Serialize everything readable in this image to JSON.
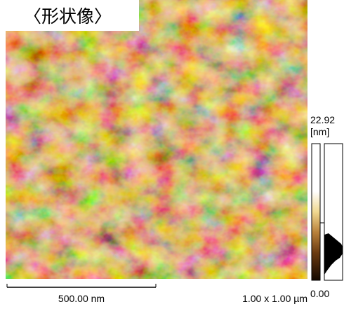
{
  "title": "〈形状像〉",
  "color_bar": {
    "max_label": "22.92",
    "unit_label": "[nm]",
    "min_label": "0.00"
  },
  "scale_bar": {
    "label": "500.00 nm"
  },
  "scan_size": "1.00 x 1.00 µm"
}
